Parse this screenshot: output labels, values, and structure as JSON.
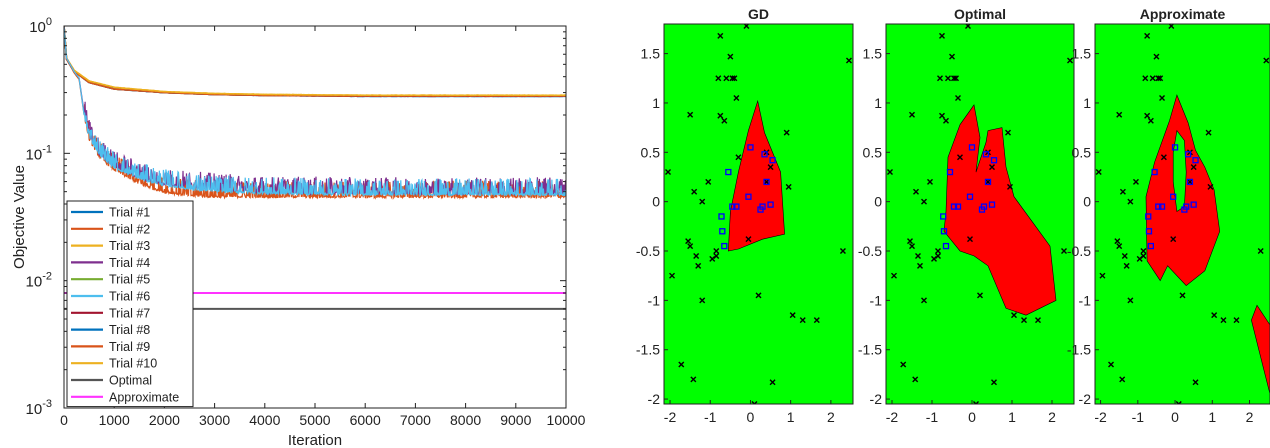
{
  "chart_data": [
    {
      "type": "line",
      "title": "",
      "xlabel": "Iteration",
      "ylabel": "Objective Value",
      "xlim": [
        0,
        10000
      ],
      "ylim": [
        0.001,
        1
      ],
      "y_scale": "log",
      "x_ticks": [
        0,
        1000,
        2000,
        3000,
        4000,
        5000,
        6000,
        7000,
        8000,
        9000,
        10000
      ],
      "y_ticks": [
        {
          "value": 0.001,
          "base": "10",
          "exp": "-3"
        },
        {
          "value": 0.01,
          "base": "10",
          "exp": "-2"
        },
        {
          "value": 0.1,
          "base": "10",
          "exp": "-1"
        },
        {
          "value": 1,
          "base": "10",
          "exp": "0"
        }
      ],
      "grid": false,
      "legend_position": "lower-left",
      "series": [
        {
          "name": "Trial #1",
          "color": "#0072BD",
          "group": "upper",
          "x": [
            0,
            50,
            200,
            500,
            1000,
            2000,
            3000,
            4000,
            6000,
            8000,
            10000
          ],
          "values": [
            1.0,
            0.55,
            0.44,
            0.36,
            0.32,
            0.3,
            0.29,
            0.285,
            0.28,
            0.28,
            0.28
          ]
        },
        {
          "name": "Trial #2",
          "color": "#D95319",
          "group": "lower",
          "x": [
            0,
            50,
            200,
            300,
            400,
            500,
            700,
            1000,
            1500,
            2000,
            2500,
            3000,
            4000,
            6000,
            8000,
            10000
          ],
          "values": [
            1.0,
            0.55,
            0.43,
            0.38,
            0.2,
            0.13,
            0.095,
            0.075,
            0.058,
            0.05,
            0.047,
            0.046,
            0.046,
            0.046,
            0.046,
            0.046
          ]
        },
        {
          "name": "Trial #3",
          "color": "#EDB120",
          "group": "upper",
          "x": [
            0,
            50,
            200,
            500,
            1000,
            2000,
            3000,
            4000,
            6000,
            8000,
            10000
          ],
          "values": [
            1.0,
            0.56,
            0.45,
            0.37,
            0.33,
            0.305,
            0.295,
            0.29,
            0.285,
            0.285,
            0.285
          ]
        },
        {
          "name": "Trial #4",
          "color": "#7E2F8E",
          "group": "lower",
          "x": [
            0,
            50,
            200,
            300,
            400,
            500,
            700,
            1000,
            1500,
            2000,
            2500,
            3000,
            4000,
            6000,
            8000,
            10000
          ],
          "values": [
            1.0,
            0.56,
            0.44,
            0.39,
            0.21,
            0.14,
            0.1,
            0.08,
            0.065,
            0.058,
            0.055,
            0.053,
            0.05,
            0.049,
            0.049,
            0.049
          ]
        },
        {
          "name": "Trial #5",
          "color": "#77AC30",
          "group": "upper",
          "x": [
            0,
            50,
            200,
            500,
            1000,
            2000,
            3000,
            4000,
            6000,
            8000,
            10000
          ],
          "values": [
            1.0,
            0.55,
            0.44,
            0.36,
            0.32,
            0.3,
            0.29,
            0.285,
            0.282,
            0.282,
            0.282
          ]
        },
        {
          "name": "Trial #6",
          "color": "#4DBEEE",
          "group": "lower",
          "x": [
            0,
            50,
            200,
            300,
            400,
            500,
            700,
            1000,
            1500,
            2000,
            2500,
            3000,
            4000,
            6000,
            8000,
            10000
          ],
          "values": [
            1.0,
            0.56,
            0.44,
            0.39,
            0.2,
            0.135,
            0.1,
            0.078,
            0.064,
            0.057,
            0.053,
            0.051,
            0.049,
            0.048,
            0.048,
            0.048
          ]
        },
        {
          "name": "Trial #7",
          "color": "#A2142F",
          "group": "upper",
          "x": [
            0,
            50,
            200,
            500,
            1000,
            2000,
            3000,
            4000,
            6000,
            8000,
            10000
          ],
          "values": [
            1.0,
            0.55,
            0.44,
            0.36,
            0.32,
            0.3,
            0.29,
            0.285,
            0.281,
            0.281,
            0.281
          ]
        },
        {
          "name": "Trial #8",
          "color": "#0072BD",
          "group": "upper",
          "x": [
            0,
            50,
            200,
            500,
            1000,
            2000,
            3000,
            4000,
            6000,
            8000,
            10000
          ],
          "values": [
            1.0,
            0.55,
            0.44,
            0.36,
            0.32,
            0.3,
            0.29,
            0.286,
            0.283,
            0.283,
            0.283
          ]
        },
        {
          "name": "Trial #9",
          "color": "#D95319",
          "group": "upper",
          "x": [
            0,
            50,
            200,
            500,
            1000,
            2000,
            3000,
            4000,
            6000,
            8000,
            10000
          ],
          "values": [
            1.0,
            0.55,
            0.44,
            0.36,
            0.32,
            0.3,
            0.29,
            0.285,
            0.282,
            0.282,
            0.282
          ]
        },
        {
          "name": "Trial #10",
          "color": "#EDB120",
          "group": "upper",
          "x": [
            0,
            50,
            200,
            500,
            1000,
            2000,
            3000,
            4000,
            6000,
            8000,
            10000
          ],
          "values": [
            1.0,
            0.56,
            0.45,
            0.37,
            0.33,
            0.305,
            0.295,
            0.29,
            0.286,
            0.286,
            0.286
          ]
        },
        {
          "name": "Optimal",
          "color": "#555555",
          "group": "flat",
          "x": [
            0,
            10000
          ],
          "values": [
            0.006,
            0.006
          ]
        },
        {
          "name": "Approximate",
          "color": "#FF33FF",
          "group": "flat",
          "x": [
            0,
            10000
          ],
          "values": [
            0.008,
            0.008
          ]
        }
      ]
    },
    {
      "type": "scatter",
      "panels": [
        {
          "title": "GD",
          "region": "gd"
        },
        {
          "title": "Optimal",
          "region": "opt"
        },
        {
          "title": "Approximate",
          "region": "approx"
        }
      ],
      "xlim": [
        -2.15,
        2.55
      ],
      "ylim": [
        -2.05,
        1.8
      ],
      "x_ticks": [
        -2,
        -1,
        0,
        1,
        2
      ],
      "y_ticks": [
        -2,
        -1.5,
        -1,
        -0.5,
        0,
        0.5,
        1,
        1.5
      ],
      "y_tick_labels": [
        "-2",
        "-1.5",
        "-1",
        "-0.5",
        "0",
        "0.5",
        "1",
        "1.5"
      ],
      "background_color": "#00FF00",
      "region_color": "#FF0000",
      "negatives_color": "#000000",
      "positives_color": "#0000FF",
      "regions": {
        "gd": [
          [
            [
              -0.55,
              -0.5
            ],
            [
              -0.5,
              -0.1
            ],
            [
              -0.3,
              0.3
            ],
            [
              -0.05,
              0.72
            ],
            [
              0.18,
              1.02
            ],
            [
              0.35,
              0.7
            ],
            [
              0.75,
              0.3
            ],
            [
              0.85,
              -0.33
            ],
            [
              0.3,
              -0.38
            ],
            [
              -0.3,
              -0.48
            ]
          ]
        ],
        "opt": [
          [
            [
              -0.65,
              -0.1
            ],
            [
              -0.6,
              0.45
            ],
            [
              -0.3,
              0.78
            ],
            [
              0.05,
              0.98
            ],
            [
              0.2,
              0.65
            ],
            [
              0.1,
              0.3
            ],
            [
              0.35,
              0.6
            ],
            [
              0.4,
              0.72
            ],
            [
              0.75,
              0.75
            ],
            [
              0.85,
              0.35
            ],
            [
              1.05,
              0.05
            ],
            [
              1.95,
              -0.45
            ],
            [
              2.1,
              -1.0
            ],
            [
              1.35,
              -1.15
            ],
            [
              0.85,
              -1.08
            ],
            [
              0.4,
              -0.65
            ],
            [
              0.05,
              -0.55
            ],
            [
              -0.3,
              -0.5
            ],
            [
              -0.7,
              -0.3
            ]
          ]
        ],
        "approx": [
          [
            [
              -0.75,
              -0.6
            ],
            [
              -0.78,
              0.05
            ],
            [
              -0.55,
              0.4
            ],
            [
              -0.15,
              0.82
            ],
            [
              0.05,
              1.08
            ],
            [
              0.35,
              0.8
            ],
            [
              0.55,
              0.52
            ],
            [
              0.8,
              0.35
            ],
            [
              1.05,
              0.12
            ],
            [
              1.2,
              -0.3
            ],
            [
              0.8,
              -0.7
            ],
            [
              0.3,
              -0.85
            ],
            [
              -0.2,
              -0.65
            ],
            [
              -0.4,
              -0.8
            ]
          ],
          [
            [
              2.2,
              -1.05
            ],
            [
              2.55,
              -1.25
            ],
            [
              2.55,
              -1.95
            ],
            [
              2.25,
              -1.5
            ],
            [
              2.05,
              -1.2
            ]
          ]
        ]
      },
      "holes": {
        "gd": [],
        "opt": [],
        "approx": [
          [
            [
              0.05,
              0.72
            ],
            [
              0.25,
              0.62
            ],
            [
              0.3,
              0.3
            ],
            [
              0.25,
              -0.05
            ],
            [
              0.05,
              -0.1
            ],
            [
              -0.05,
              0.2
            ],
            [
              -0.05,
              0.5
            ]
          ]
        ]
      },
      "negatives": {
        "x": [
          -2.05,
          -1.95,
          -1.72,
          -1.55,
          -1.5,
          -1.42,
          -1.35,
          -1.3,
          -1.5,
          -1.4,
          -1.2,
          -1.05,
          -0.95,
          -0.85,
          -0.8,
          -0.75,
          -0.65,
          -0.6,
          -0.5,
          -0.45,
          -0.4,
          -0.35,
          -0.3,
          -0.1,
          0.1,
          0.2,
          0.4,
          0.4,
          0.5,
          0.9,
          0.95,
          1.05,
          1.3,
          1.65,
          2.3,
          2.45,
          -0.75,
          -0.85,
          -1.2,
          -0.05,
          0.55
        ],
        "y": [
          0.3,
          -0.75,
          -1.65,
          -0.4,
          -0.45,
          -1.8,
          -0.55,
          -0.65,
          0.88,
          0.1,
          -1.0,
          0.2,
          -0.58,
          -0.55,
          1.25,
          0.87,
          0.82,
          1.25,
          1.47,
          1.25,
          1.25,
          1.05,
          0.45,
          1.78,
          -2.05,
          -0.95,
          0.5,
          0.2,
          0.35,
          0.7,
          0.15,
          -1.15,
          -1.2,
          -1.2,
          -0.5,
          1.43,
          1.68,
          -0.5,
          0.0,
          -0.38,
          -1.83
        ],
        "marker": "x"
      },
      "positives": {
        "x": [
          -0.72,
          -0.7,
          -0.65,
          -0.55,
          -0.45,
          -0.35,
          -0.05,
          0.0,
          0.25,
          0.3,
          0.35,
          0.4,
          0.55,
          0.5
        ],
        "y": [
          -0.15,
          -0.3,
          -0.45,
          0.3,
          -0.05,
          -0.05,
          0.05,
          0.55,
          -0.08,
          -0.05,
          0.48,
          0.2,
          0.42,
          -0.03
        ],
        "marker": "square"
      }
    }
  ]
}
